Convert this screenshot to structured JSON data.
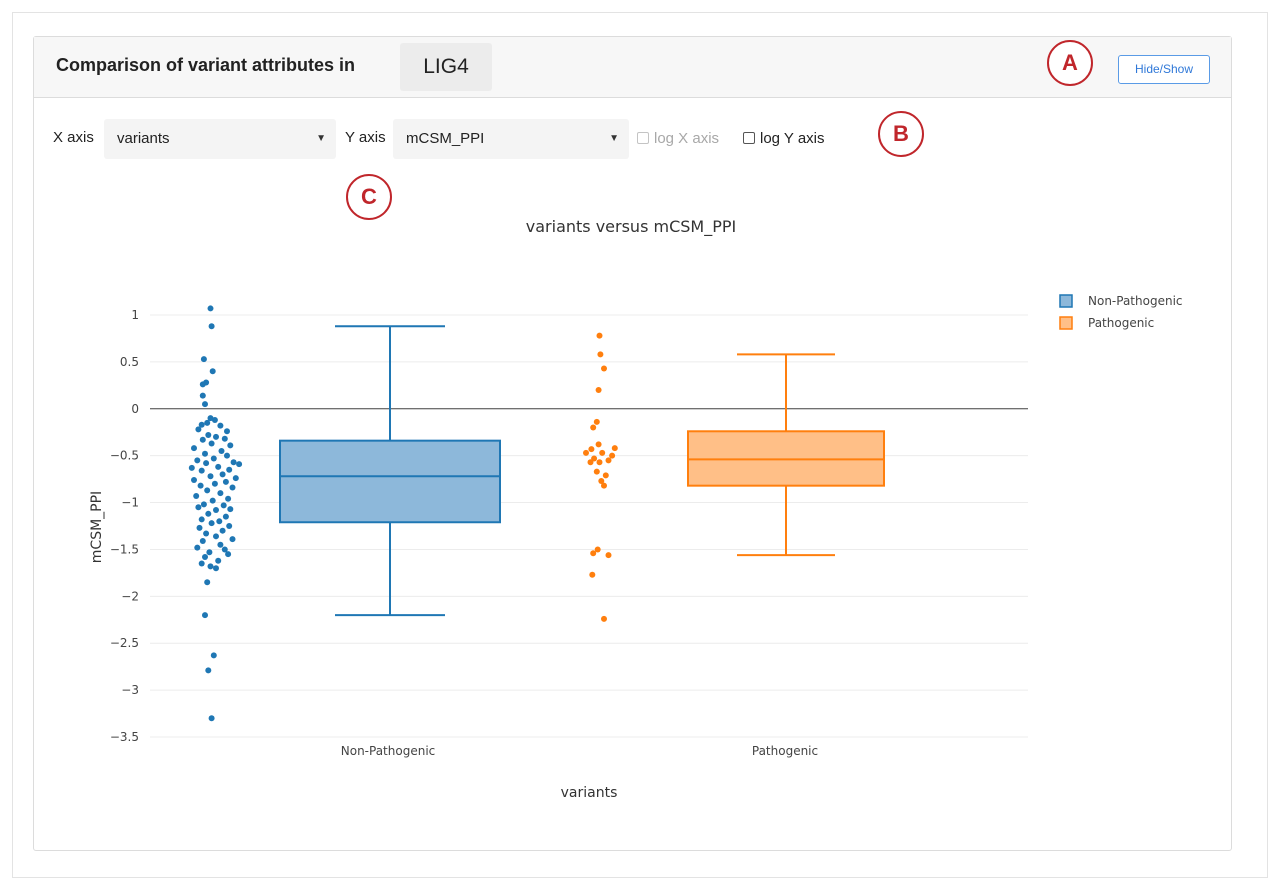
{
  "header": {
    "title": "Comparison of variant attributes in",
    "gene": "LIG4",
    "hide_show_label": "Hide/Show"
  },
  "controls": {
    "x_axis_label": "X axis",
    "x_axis_value": "variants",
    "y_axis_label": "Y axis",
    "y_axis_value": "mCSM_PPI",
    "log_x_label": "log X axis",
    "log_x_checked": false,
    "log_x_disabled": true,
    "log_y_label": "log Y axis",
    "log_y_checked": false
  },
  "markers": {
    "a": "A",
    "b": "B",
    "c": "C",
    "color": "#c0262b"
  },
  "chart_data": {
    "type": "box",
    "title": "variants versus mCSM_PPI",
    "xlabel": "variants",
    "ylabel": "mCSM_PPI",
    "categories": [
      "Non-Pathogenic",
      "Pathogenic"
    ],
    "ylim": [
      -3.6,
      1.1
    ],
    "yticks": [
      1,
      0.5,
      0,
      -0.5,
      -1,
      -1.5,
      -2,
      -2.5,
      -3,
      -3.5
    ],
    "ytick_labels": [
      "1",
      "0.5",
      "0",
      "−0.5",
      "−1",
      "−1.5",
      "−2",
      "−2.5",
      "−3",
      "−3.5"
    ],
    "grid": true,
    "zero_line": true,
    "legend_position": "top-right",
    "series": [
      {
        "name": "Non-Pathogenic",
        "color": "#1f77b4",
        "fill": "#8db8da",
        "box": {
          "lower_fence": -2.2,
          "q1": -1.21,
          "median": -0.72,
          "q3": -0.34,
          "upper_fence": 0.88
        },
        "points": [
          [
            -0.05,
            1.07
          ],
          [
            -0.04,
            0.88
          ],
          [
            -0.11,
            0.53
          ],
          [
            -0.03,
            0.4
          ],
          [
            -0.09,
            0.28
          ],
          [
            -0.12,
            0.26
          ],
          [
            -0.12,
            0.14
          ],
          [
            -0.1,
            0.05
          ],
          [
            -0.05,
            -0.1
          ],
          [
            -0.01,
            -0.12
          ],
          [
            -0.08,
            -0.15
          ],
          [
            -0.13,
            -0.17
          ],
          [
            0.04,
            -0.18
          ],
          [
            0.1,
            -0.24
          ],
          [
            -0.16,
            -0.22
          ],
          [
            -0.07,
            -0.28
          ],
          [
            0.0,
            -0.3
          ],
          [
            0.08,
            -0.32
          ],
          [
            -0.12,
            -0.33
          ],
          [
            -0.04,
            -0.37
          ],
          [
            0.13,
            -0.39
          ],
          [
            -0.2,
            -0.42
          ],
          [
            0.05,
            -0.45
          ],
          [
            -0.1,
            -0.48
          ],
          [
            0.1,
            -0.5
          ],
          [
            -0.02,
            -0.53
          ],
          [
            -0.17,
            -0.55
          ],
          [
            0.16,
            -0.57
          ],
          [
            -0.09,
            -0.58
          ],
          [
            0.21,
            -0.59
          ],
          [
            0.02,
            -0.62
          ],
          [
            -0.22,
            -0.63
          ],
          [
            0.12,
            -0.65
          ],
          [
            -0.13,
            -0.66
          ],
          [
            0.06,
            -0.7
          ],
          [
            -0.05,
            -0.72
          ],
          [
            0.18,
            -0.74
          ],
          [
            -0.2,
            -0.76
          ],
          [
            0.09,
            -0.78
          ],
          [
            -0.01,
            -0.8
          ],
          [
            -0.14,
            -0.82
          ],
          [
            0.15,
            -0.84
          ],
          [
            -0.08,
            -0.87
          ],
          [
            0.04,
            -0.9
          ],
          [
            -0.18,
            -0.93
          ],
          [
            0.11,
            -0.96
          ],
          [
            -0.03,
            -0.98
          ],
          [
            -0.11,
            -1.02
          ],
          [
            0.07,
            -1.03
          ],
          [
            -0.16,
            -1.05
          ],
          [
            0.13,
            -1.07
          ],
          [
            0.0,
            -1.08
          ],
          [
            -0.07,
            -1.12
          ],
          [
            0.09,
            -1.15
          ],
          [
            -0.13,
            -1.18
          ],
          [
            0.03,
            -1.2
          ],
          [
            -0.04,
            -1.22
          ],
          [
            0.12,
            -1.25
          ],
          [
            -0.15,
            -1.27
          ],
          [
            0.06,
            -1.3
          ],
          [
            -0.09,
            -1.33
          ],
          [
            0.0,
            -1.36
          ],
          [
            0.15,
            -1.39
          ],
          [
            -0.12,
            -1.41
          ],
          [
            0.04,
            -1.45
          ],
          [
            -0.17,
            -1.48
          ],
          [
            0.08,
            -1.5
          ],
          [
            -0.06,
            -1.53
          ],
          [
            0.11,
            -1.55
          ],
          [
            -0.1,
            -1.58
          ],
          [
            0.02,
            -1.62
          ],
          [
            -0.13,
            -1.65
          ],
          [
            -0.05,
            -1.68
          ],
          [
            0.0,
            -1.7
          ],
          [
            -0.08,
            -1.85
          ],
          [
            -0.1,
            -2.2
          ],
          [
            -0.02,
            -2.63
          ],
          [
            -0.07,
            -2.79
          ],
          [
            -0.04,
            -3.3
          ]
        ]
      },
      {
        "name": "Pathogenic",
        "color": "#ff7f0e",
        "fill": "#ffbf87",
        "box": {
          "lower_fence": -1.56,
          "q1": -0.82,
          "median": -0.54,
          "q3": -0.24,
          "upper_fence": 0.58
        },
        "points": [
          [
            -0.05,
            0.78
          ],
          [
            -0.04,
            0.58
          ],
          [
            0.0,
            0.43
          ],
          [
            -0.06,
            0.2
          ],
          [
            -0.08,
            -0.14
          ],
          [
            -0.12,
            -0.2
          ],
          [
            0.12,
            -0.42
          ],
          [
            -0.06,
            -0.38
          ],
          [
            -0.14,
            -0.43
          ],
          [
            -0.02,
            -0.47
          ],
          [
            -0.2,
            -0.47
          ],
          [
            0.09,
            -0.5
          ],
          [
            -0.11,
            -0.53
          ],
          [
            -0.15,
            -0.57
          ],
          [
            -0.05,
            -0.57
          ],
          [
            0.05,
            -0.55
          ],
          [
            -0.08,
            -0.67
          ],
          [
            0.02,
            -0.71
          ],
          [
            -0.03,
            -0.77
          ],
          [
            0.0,
            -0.82
          ],
          [
            -0.07,
            -1.5
          ],
          [
            -0.12,
            -1.54
          ],
          [
            0.05,
            -1.56
          ],
          [
            -0.13,
            -1.77
          ],
          [
            0.0,
            -2.24
          ]
        ]
      }
    ]
  }
}
